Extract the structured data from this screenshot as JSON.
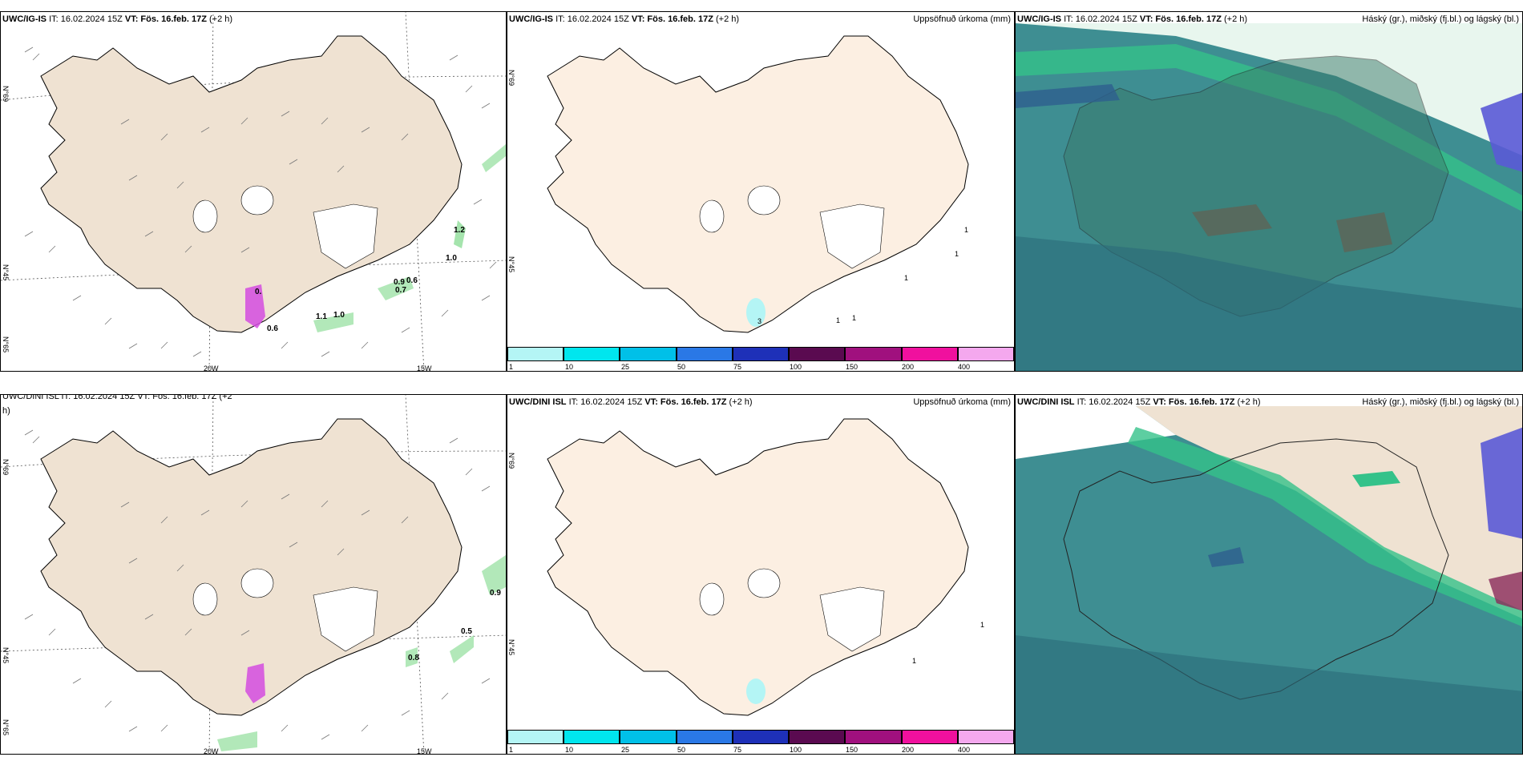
{
  "panels": {
    "p1": {
      "model": "UWC/IG-IS",
      "it_prefix": "IT: 16.02.2024 15Z",
      "vt_label": "VT: Fös. 16.feb. 17Z",
      "lead": "(+2 h)",
      "labels": [
        "1.2",
        "1.0",
        "0.9",
        "0.6",
        "0.7",
        "1.1",
        "1.0",
        "0.6",
        "0."
      ],
      "lat_labels": [
        "N°69",
        "N°45",
        "N°65"
      ],
      "lon_labels": [
        "20W",
        "15W"
      ]
    },
    "p2": {
      "model": "UWC/IG-IS",
      "it_prefix": "IT: 16.02.2024 15Z",
      "vt_label": "VT: Fös. 16.feb. 17Z",
      "lead": "(+2 h)",
      "title_right": "Uppsöfnuð úrkoma (mm)",
      "lat_labels": [
        "N°69",
        "N°45"
      ],
      "point_values": [
        "1",
        "1",
        "1",
        "3",
        "1",
        "1"
      ]
    },
    "p3": {
      "model": "UWC/IG-IS",
      "it_prefix": "IT: 16.02.2024 15Z",
      "vt_label": "VT: Fös. 16.feb. 17Z",
      "lead": "(+2 h)",
      "title_right": "Háský (gr.), miðský (fj.bl.) og lágský (bl.)"
    },
    "p4": {
      "header_cut": "UWC/DINI ISL IT: 16.02.2024 15Z VT: Fös. 16.feb. 17Z (+2",
      "header_wrap": "h)",
      "labels": [
        "0.9",
        "0.5",
        "0.8"
      ],
      "lat_labels": [
        "N°69",
        "N°45",
        "N°65"
      ],
      "lon_labels": [
        "20W",
        "15W"
      ]
    },
    "p5": {
      "model": "UWC/DINI ISL",
      "it_prefix": "IT: 16.02.2024 15Z",
      "vt_label": "VT: Fös. 16.feb. 17Z",
      "lead": "(+2 h)",
      "title_right": "Uppsöfnuð úrkoma (mm)",
      "lat_labels": [
        "N°69",
        "N°45"
      ],
      "point_values": [
        "1",
        "1"
      ]
    },
    "p6": {
      "model": "UWC/DINI ISL",
      "it_prefix": "IT: 16.02.2024 15Z",
      "vt_label": "VT: Fös. 16.feb. 17Z",
      "lead": "(+2 h)",
      "title_right": "Háský (gr.), miðský (fj.bl.) og lágský (bl.)"
    }
  },
  "colorbar": {
    "colors": [
      "#b4f5f5",
      "#00e6ee",
      "#00c0e8",
      "#2a78e6",
      "#1e30b8",
      "#5a0a50",
      "#a0107e",
      "#f0109e",
      "#f4a8ee"
    ],
    "ticks": [
      "1",
      "10",
      "25",
      "50",
      "75",
      "100",
      "150",
      "200",
      "400"
    ]
  },
  "colors": {
    "land": "#efe2d2",
    "land_light": "#fcefe2",
    "precip_green": "#7fd98a",
    "precip_pink": "#d44ce0",
    "sea_cloud": "#3e8e92"
  }
}
